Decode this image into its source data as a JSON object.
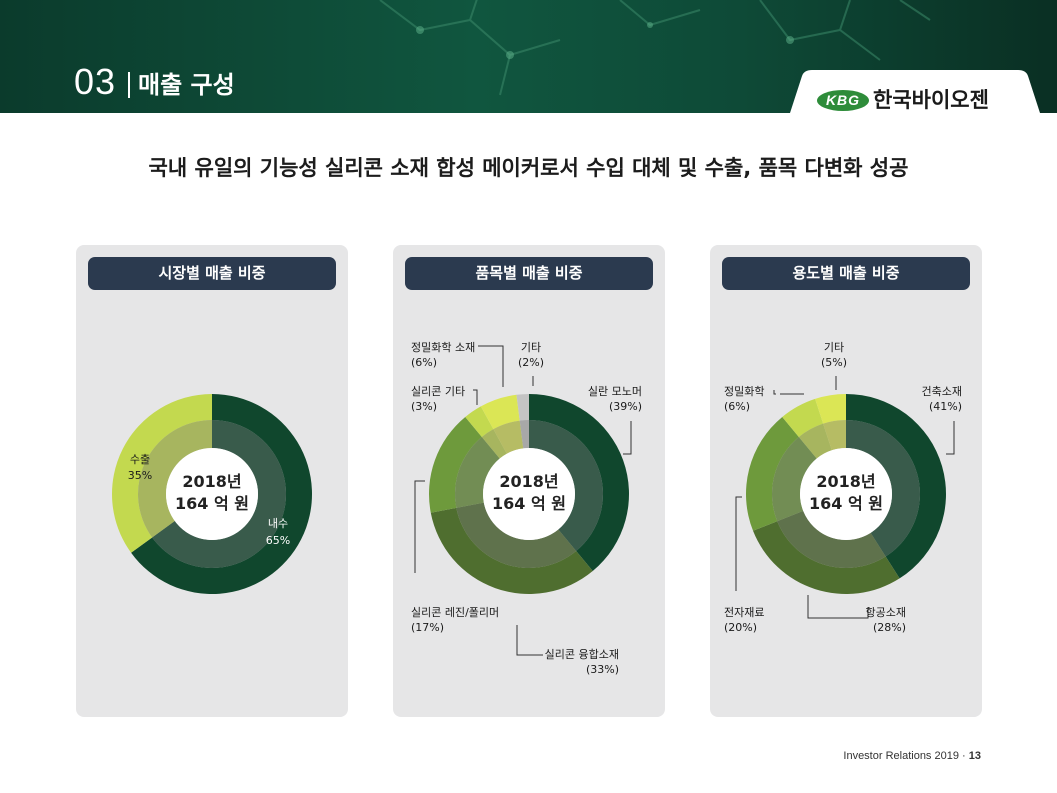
{
  "header": {
    "section_number": "03",
    "section_title": "매출 구성",
    "logo_badge": "KBG",
    "logo_text": "한국바이오젠"
  },
  "headline": "국내 유일의 기능성 실리콘 소재 합성 메이커로서 수입 대체 및 수출, 품목 다변화 성공",
  "colors": {
    "dark_green": "#10472d",
    "olive_green": "#4f6e2f",
    "mid_green": "#6e9a3c",
    "lime": "#c3d94f",
    "light_lime": "#dbe655",
    "grey": "#c4c4c4",
    "panel_bg": "#e6e6e7",
    "panel_header": "#2b3a4f"
  },
  "chart_data": [
    {
      "type": "pie",
      "title": "시장별 매출 비중",
      "center_text": [
        "2018년",
        "164 억 원"
      ],
      "slices": [
        {
          "label": "내수",
          "percent_text": "65%",
          "value": 65
        },
        {
          "label": "수출",
          "percent_text": "35%",
          "value": 35
        }
      ]
    },
    {
      "type": "pie",
      "title": "품목별 매출 비중",
      "center_text": [
        "2018년",
        "164 억 원"
      ],
      "slices": [
        {
          "label": "실란 모노머",
          "percent_text": "(39%)",
          "value": 39
        },
        {
          "label": "실리콘 융합소재",
          "percent_text": "(33%)",
          "value": 33
        },
        {
          "label": "실리콘 레진/폴리머",
          "percent_text": "(17%)",
          "value": 17
        },
        {
          "label": "실리콘 기타",
          "percent_text": "(3%)",
          "value": 3
        },
        {
          "label": "정밀화학 소재",
          "percent_text": "(6%)",
          "value": 6
        },
        {
          "label": "기타",
          "percent_text": "(2%)",
          "value": 2
        }
      ]
    },
    {
      "type": "pie",
      "title": "용도별 매출 비중",
      "center_text": [
        "2018년",
        "164 억 원"
      ],
      "slices": [
        {
          "label": "건축소재",
          "percent_text": "(41%)",
          "value": 41
        },
        {
          "label": "항공소재",
          "percent_text": "(28%)",
          "value": 28
        },
        {
          "label": "전자재료",
          "percent_text": "(20%)",
          "value": 20
        },
        {
          "label": "정밀화학",
          "percent_text": "(6%)",
          "value": 6
        },
        {
          "label": "기타",
          "percent_text": "(5%)",
          "value": 5
        }
      ]
    }
  ],
  "footer": {
    "text": "Investor Relations 2019 · ",
    "page": "13"
  }
}
